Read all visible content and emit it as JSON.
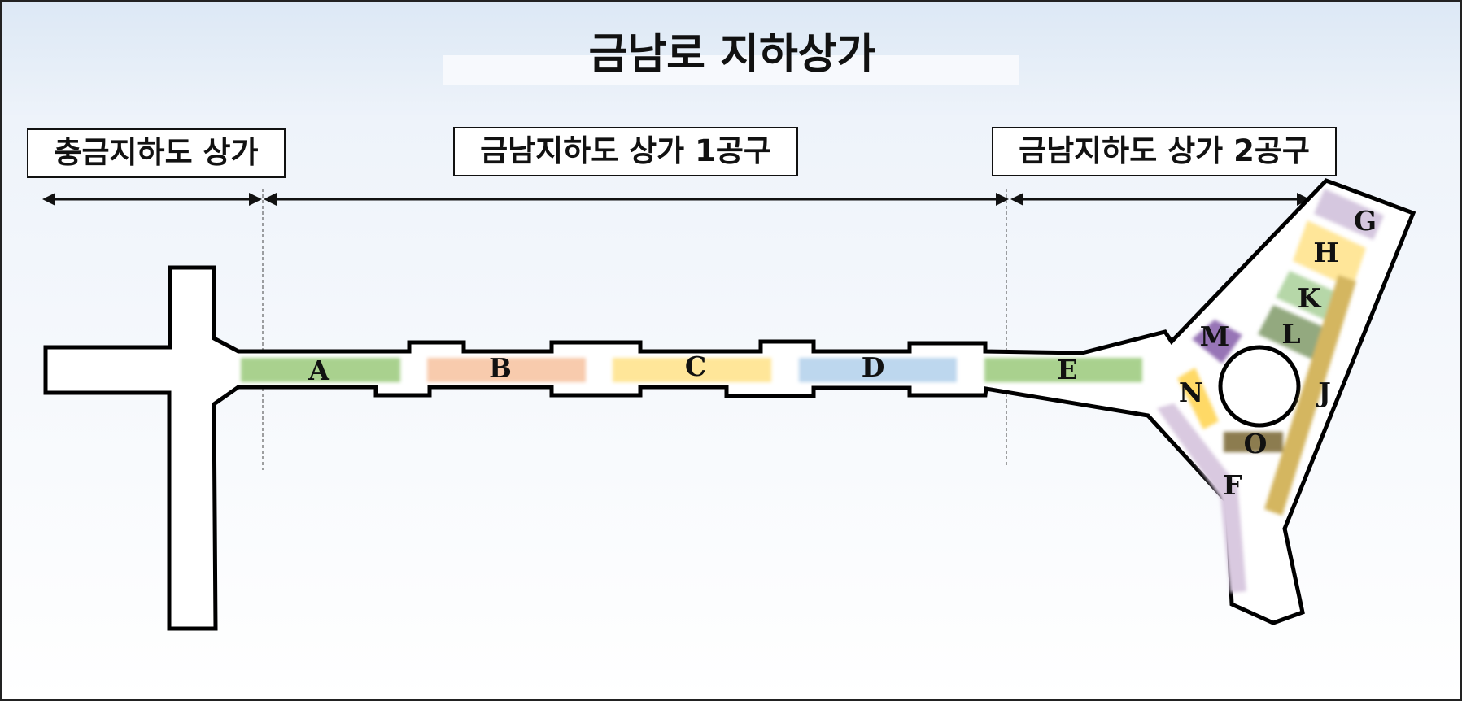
{
  "title": "금남로 지하상가",
  "sections": {
    "chunggeum": "충금지하도 상가",
    "geumnam_1": "금남지하도 상가 1공구",
    "geumnam_2": "금남지하도 상가 2공구"
  },
  "zones": [
    {
      "id": "A",
      "color": "#a9d18e"
    },
    {
      "id": "B",
      "color": "#f8cbad"
    },
    {
      "id": "C",
      "color": "#ffe699"
    },
    {
      "id": "D",
      "color": "#bdd7ee"
    },
    {
      "id": "E",
      "color": "#a9d18e"
    },
    {
      "id": "F",
      "color": "#d9c9e0"
    },
    {
      "id": "G",
      "color": "#d5c7df"
    },
    {
      "id": "H",
      "color": "#ffe699"
    },
    {
      "id": "K",
      "color": "#b6d7a8"
    },
    {
      "id": "L",
      "color": "#93a97f"
    },
    {
      "id": "M",
      "color": "#9775b6"
    },
    {
      "id": "N",
      "color": "#ffd966"
    },
    {
      "id": "O",
      "color": "#8c7b4f"
    },
    {
      "id": "J",
      "color": "#d4b660"
    }
  ]
}
